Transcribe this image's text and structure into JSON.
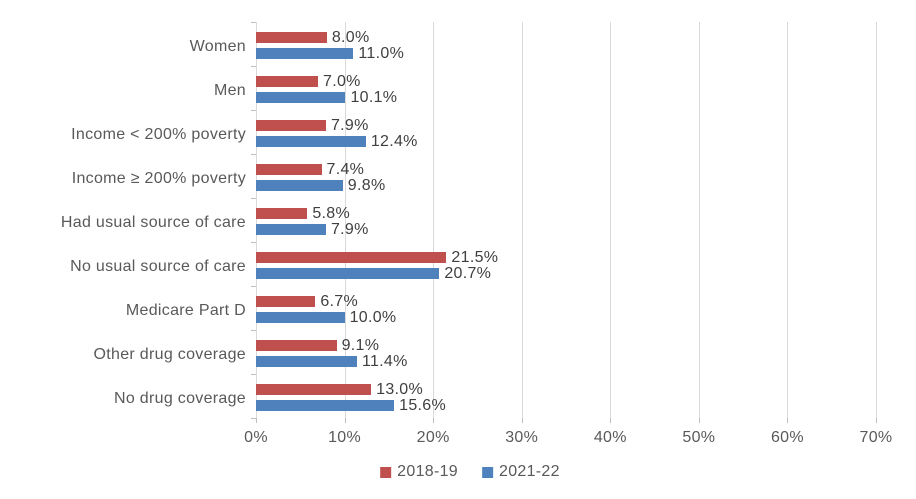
{
  "chart_data": {
    "type": "bar",
    "orientation": "horizontal",
    "title": "",
    "xlabel": "",
    "ylabel": "",
    "categories": [
      "Women",
      "Men",
      "Income < 200% poverty",
      "Income ≥ 200% poverty",
      "Had usual source of care",
      "No usual source of care",
      "Medicare Part D",
      "Other drug coverage",
      "No drug coverage"
    ],
    "series": [
      {
        "name": "2018-19",
        "color": "#C0504D",
        "values": [
          8.0,
          7.0,
          7.9,
          7.4,
          5.8,
          21.5,
          6.7,
          9.1,
          13.0
        ]
      },
      {
        "name": "2021-22",
        "color": "#4F81BD",
        "values": [
          11.0,
          10.1,
          12.4,
          9.8,
          7.9,
          20.7,
          10.0,
          11.4,
          15.6
        ]
      }
    ],
    "data_label_format": "percent_one_decimal",
    "xlim": [
      0,
      70
    ],
    "x_tick_labels": [
      "0%",
      "10%",
      "20%",
      "30%",
      "40%",
      "50%",
      "60%",
      "70%"
    ],
    "grid": true,
    "legend_position": "bottom-center",
    "colors": {
      "gridline": "#D9D9D9",
      "tick": "#BFBFBF",
      "axis_text": "#595959",
      "data_label_text": "#404040",
      "background": "#FFFFFF"
    }
  }
}
